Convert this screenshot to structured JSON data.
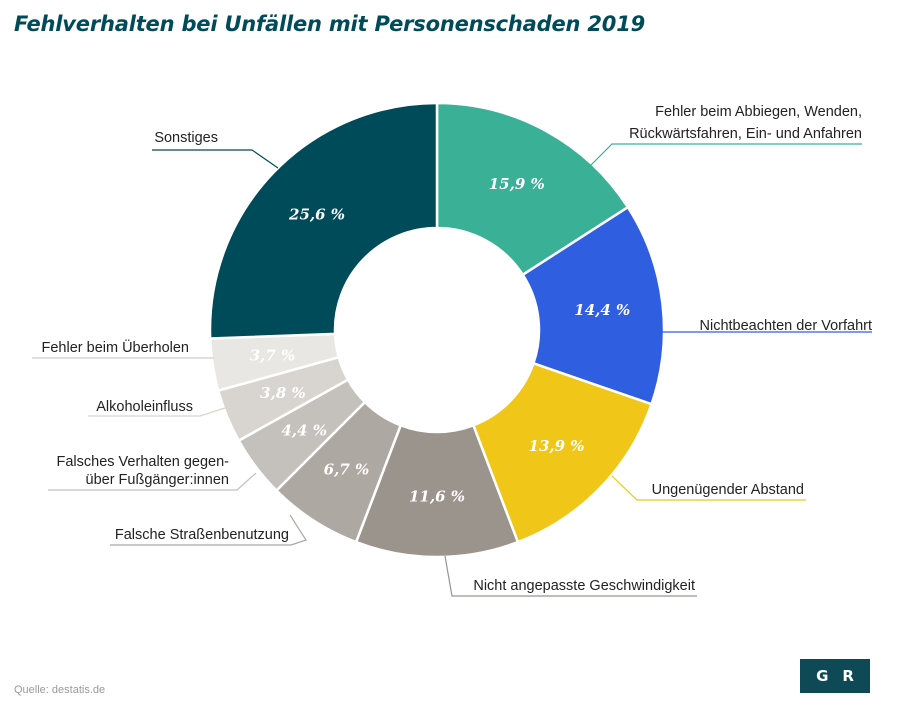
{
  "title": "Fehlverhalten bei Unfällen mit Personenschaden 2019",
  "source": "Quelle: destatis.de",
  "logo_text": "GR",
  "chart_data": {
    "type": "pie",
    "variant": "donut",
    "title": "Fehlverhalten bei Unfällen mit Personenschaden 2019",
    "unit": "%",
    "slices": [
      {
        "label": [
          "Fehler beim Abbiegen, Wenden,",
          "Rückwärtsfahren, Ein- und Anfahren"
        ],
        "value": 15.9,
        "value_label": "15,9 %",
        "color": "#3ab096"
      },
      {
        "label": [
          "Nichtbeachten der Vorfahrt"
        ],
        "value": 14.4,
        "value_label": "14,4 %",
        "color": "#2f5fe0"
      },
      {
        "label": [
          "Ungenügender Abstand"
        ],
        "value": 13.9,
        "value_label": "13,9 %",
        "color": "#f0c718"
      },
      {
        "label": [
          "Nicht angepasste Geschwindigkeit"
        ],
        "value": 11.6,
        "value_label": "11,6 %",
        "color": "#9a948d"
      },
      {
        "label": [
          "Falsche Straßenbenutzung"
        ],
        "value": 6.7,
        "value_label": "6,7 %",
        "color": "#aea8a2"
      },
      {
        "label": [
          "Falsches Verhalten gegen-",
          "über Fußgänger:innen"
        ],
        "value": 4.4,
        "value_label": "4,4 %",
        "color": "#c4c0bb"
      },
      {
        "label": [
          "Alkoholeinfluss"
        ],
        "value": 3.8,
        "value_label": "3,8 %",
        "color": "#d8d5d1"
      },
      {
        "label": [
          "Fehler beim Überholen"
        ],
        "value": 3.7,
        "value_label": "3,7 %",
        "color": "#e9e7e4"
      },
      {
        "label": [
          "Sonstiges"
        ],
        "value": 25.6,
        "value_label": "25,6 %",
        "color": "#004b5a"
      }
    ]
  }
}
